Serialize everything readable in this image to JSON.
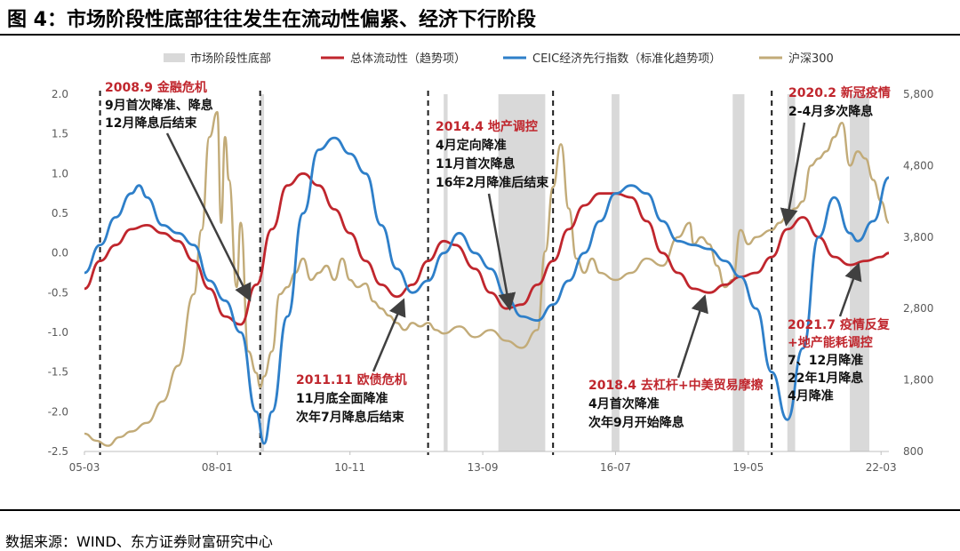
{
  "figure": {
    "title": "图 4：市场阶段性底部往往发生在流动性偏紧、经济下行阶段",
    "source": "数据来源：WIND、东方证券财富研究中心"
  },
  "colors": {
    "shade": "#d9d9d9",
    "liquidity": "#c0262d",
    "ceic": "#2e7fc9",
    "csi300": "#c2ab78",
    "dashed": "#1a1a1a",
    "arrow": "#404040"
  },
  "chart_data": {
    "type": "line",
    "x_ticks": [
      "05-03",
      "08-01",
      "10-11",
      "13-09",
      "16-07",
      "19-05",
      "22-03"
    ],
    "x_tick_months": [
      0,
      34,
      68,
      102,
      136,
      170,
      204
    ],
    "x_range_months": [
      0,
      206
    ],
    "y_left": {
      "range": [
        -2.5,
        2.0
      ],
      "ticks": [
        "2.0",
        "1.5",
        "1.0",
        "0.5",
        "0.0",
        "-0.5",
        "-1.0",
        "-1.5",
        "-2.0",
        "-2.5"
      ]
    },
    "y_right": {
      "range": [
        800,
        5800
      ],
      "ticks": [
        "5,800",
        "4,800",
        "3,800",
        "2,800",
        "1,800",
        "800"
      ]
    },
    "legend": [
      {
        "name": "市场阶段性底部",
        "type": "bar"
      },
      {
        "name": "总体流动性（趋势项）",
        "type": "line"
      },
      {
        "name": "CEIC经济先行指数（标准化趋势项）",
        "type": "line"
      },
      {
        "name": "沪深300",
        "type": "line"
      }
    ],
    "shaded_periods_months": [
      [
        45,
        46
      ],
      [
        92,
        93
      ],
      [
        106,
        118
      ],
      [
        135,
        137
      ],
      [
        166,
        169
      ],
      [
        180,
        182
      ],
      [
        196,
        201
      ]
    ],
    "dashed_lines_months": [
      4,
      45,
      88,
      120,
      176
    ],
    "series": [
      {
        "name": "总体流动性（趋势项）",
        "axis": "left",
        "points": [
          [
            0,
            -0.45
          ],
          [
            4,
            -0.1
          ],
          [
            8,
            0.1
          ],
          [
            12,
            0.3
          ],
          [
            16,
            0.35
          ],
          [
            20,
            0.25
          ],
          [
            24,
            0.15
          ],
          [
            28,
            -0.1
          ],
          [
            32,
            -0.45
          ],
          [
            36,
            -0.8
          ],
          [
            40,
            -0.9
          ],
          [
            44,
            -0.4
          ],
          [
            48,
            0.3
          ],
          [
            52,
            0.85
          ],
          [
            56,
            1.0
          ],
          [
            60,
            0.85
          ],
          [
            64,
            0.55
          ],
          [
            68,
            0.25
          ],
          [
            72,
            -0.1
          ],
          [
            76,
            -0.4
          ],
          [
            80,
            -0.55
          ],
          [
            84,
            -0.4
          ],
          [
            88,
            -0.1
          ],
          [
            92,
            0.15
          ],
          [
            95,
            0.1
          ],
          [
            100,
            -0.2
          ],
          [
            104,
            -0.5
          ],
          [
            108,
            -0.7
          ],
          [
            112,
            -0.65
          ],
          [
            116,
            -0.4
          ],
          [
            120,
            -0.1
          ],
          [
            124,
            0.3
          ],
          [
            128,
            0.6
          ],
          [
            132,
            0.75
          ],
          [
            136,
            0.75
          ],
          [
            140,
            0.7
          ],
          [
            144,
            0.4
          ],
          [
            148,
            0.0
          ],
          [
            152,
            -0.25
          ],
          [
            156,
            -0.45
          ],
          [
            160,
            -0.5
          ],
          [
            164,
            -0.4
          ],
          [
            168,
            -0.3
          ],
          [
            172,
            -0.25
          ],
          [
            176,
            -0.05
          ],
          [
            180,
            0.3
          ],
          [
            184,
            0.45
          ],
          [
            188,
            0.2
          ],
          [
            192,
            -0.05
          ],
          [
            196,
            -0.15
          ],
          [
            200,
            -0.1
          ],
          [
            204,
            -0.05
          ],
          [
            206,
            0.0
          ]
        ]
      },
      {
        "name": "CEIC经济先行指数（标准化趋势项）",
        "axis": "left",
        "points": [
          [
            0,
            -0.25
          ],
          [
            4,
            0.1
          ],
          [
            8,
            0.45
          ],
          [
            12,
            0.75
          ],
          [
            14,
            0.85
          ],
          [
            16,
            0.7
          ],
          [
            20,
            0.35
          ],
          [
            24,
            0.25
          ],
          [
            28,
            0.1
          ],
          [
            32,
            -0.35
          ],
          [
            36,
            -0.6
          ],
          [
            40,
            -1.0
          ],
          [
            44,
            -2.0
          ],
          [
            46,
            -2.4
          ],
          [
            48,
            -2.0
          ],
          [
            52,
            -0.8
          ],
          [
            56,
            0.5
          ],
          [
            60,
            1.3
          ],
          [
            64,
            1.45
          ],
          [
            68,
            1.25
          ],
          [
            72,
            1.0
          ],
          [
            76,
            0.35
          ],
          [
            80,
            -0.2
          ],
          [
            84,
            -0.5
          ],
          [
            88,
            -0.35
          ],
          [
            92,
            0.0
          ],
          [
            96,
            0.25
          ],
          [
            100,
            0.0
          ],
          [
            104,
            -0.2
          ],
          [
            108,
            -0.55
          ],
          [
            112,
            -0.8
          ],
          [
            116,
            -0.85
          ],
          [
            120,
            -0.65
          ],
          [
            124,
            -0.35
          ],
          [
            128,
            0.0
          ],
          [
            132,
            0.4
          ],
          [
            136,
            0.75
          ],
          [
            140,
            0.85
          ],
          [
            144,
            0.75
          ],
          [
            148,
            0.4
          ],
          [
            152,
            0.15
          ],
          [
            156,
            0.1
          ],
          [
            160,
            0.05
          ],
          [
            164,
            -0.1
          ],
          [
            168,
            -0.3
          ],
          [
            172,
            -0.7
          ],
          [
            176,
            -1.5
          ],
          [
            180,
            -2.1
          ],
          [
            184,
            -1.2
          ],
          [
            188,
            0.2
          ],
          [
            192,
            0.7
          ],
          [
            196,
            0.25
          ],
          [
            198,
            0.15
          ],
          [
            202,
            0.4
          ],
          [
            206,
            0.95
          ]
        ]
      },
      {
        "name": "沪深300",
        "axis": "right",
        "points": [
          [
            0,
            1050
          ],
          [
            3,
            950
          ],
          [
            6,
            880
          ],
          [
            9,
            1000
          ],
          [
            12,
            1080
          ],
          [
            16,
            1200
          ],
          [
            20,
            1500
          ],
          [
            24,
            2000
          ],
          [
            28,
            3000
          ],
          [
            30,
            3900
          ],
          [
            32,
            5200
          ],
          [
            34,
            5550
          ],
          [
            35,
            4000
          ],
          [
            36,
            5200
          ],
          [
            37,
            4600
          ],
          [
            39,
            3100
          ],
          [
            40,
            4000
          ],
          [
            42,
            2200
          ],
          [
            44,
            1900
          ],
          [
            45,
            1700
          ],
          [
            46,
            1850
          ],
          [
            48,
            2200
          ],
          [
            50,
            3000
          ],
          [
            52,
            3100
          ],
          [
            54,
            3300
          ],
          [
            56,
            3500
          ],
          [
            58,
            3200
          ],
          [
            60,
            3300
          ],
          [
            62,
            3400
          ],
          [
            64,
            3200
          ],
          [
            66,
            3500
          ],
          [
            68,
            3200
          ],
          [
            70,
            3100
          ],
          [
            72,
            3150
          ],
          [
            74,
            2900
          ],
          [
            76,
            2800
          ],
          [
            78,
            2700
          ],
          [
            80,
            2600
          ],
          [
            82,
            2500
          ],
          [
            84,
            2600
          ],
          [
            86,
            2550
          ],
          [
            88,
            2600
          ],
          [
            90,
            2500
          ],
          [
            92,
            2450
          ],
          [
            96,
            2550
          ],
          [
            100,
            2400
          ],
          [
            104,
            2500
          ],
          [
            108,
            2350
          ],
          [
            112,
            2250
          ],
          [
            116,
            2500
          ],
          [
            118,
            3600
          ],
          [
            120,
            4500
          ],
          [
            122,
            5100
          ],
          [
            124,
            4200
          ],
          [
            126,
            3500
          ],
          [
            128,
            3300
          ],
          [
            130,
            3500
          ],
          [
            132,
            3300
          ],
          [
            136,
            3200
          ],
          [
            140,
            3300
          ],
          [
            144,
            3500
          ],
          [
            148,
            3400
          ],
          [
            152,
            3800
          ],
          [
            155,
            4000
          ],
          [
            156,
            3700
          ],
          [
            158,
            3800
          ],
          [
            160,
            3700
          ],
          [
            162,
            3400
          ],
          [
            164,
            3100
          ],
          [
            166,
            3200
          ],
          [
            168,
            3900
          ],
          [
            170,
            3700
          ],
          [
            172,
            3800
          ],
          [
            176,
            3900
          ],
          [
            178,
            4000
          ],
          [
            180,
            4100
          ],
          [
            182,
            4200
          ],
          [
            184,
            4300
          ],
          [
            186,
            4800
          ],
          [
            188,
            4900
          ],
          [
            190,
            5000
          ],
          [
            192,
            5200
          ],
          [
            194,
            5400
          ],
          [
            196,
            4800
          ],
          [
            198,
            5000
          ],
          [
            200,
            4900
          ],
          [
            202,
            4600
          ],
          [
            204,
            4300
          ],
          [
            206,
            4000
          ]
        ]
      }
    ]
  },
  "annotations": [
    {
      "id": "gfc",
      "title": "2008.9 金融危机",
      "lines": [
        "9月首次降准、降息",
        "12月降息后结束"
      ]
    },
    {
      "id": "euro",
      "title": "2011.11 欧债危机",
      "lines": [
        "11月底全面降准",
        "次年7月降息后结束"
      ]
    },
    {
      "id": "property",
      "title": "2014.4 地产调控",
      "lines": [
        "4月定向降准",
        "11月首次降息",
        "16年2月降准后结束"
      ]
    },
    {
      "id": "delever",
      "title": "2018.4 去杠杆+中美贸易摩擦",
      "lines": [
        "4月首次降准",
        "次年9月开始降息"
      ]
    },
    {
      "id": "covid",
      "title": "2020.2 新冠疫情",
      "lines": [
        "2-4月多次降息"
      ]
    },
    {
      "id": "recur",
      "title": "2021.7 疫情反复",
      "title2": "+地产能耗调控",
      "lines": [
        "7、12月降准",
        "22年1月降息",
        "4月降准"
      ]
    }
  ]
}
